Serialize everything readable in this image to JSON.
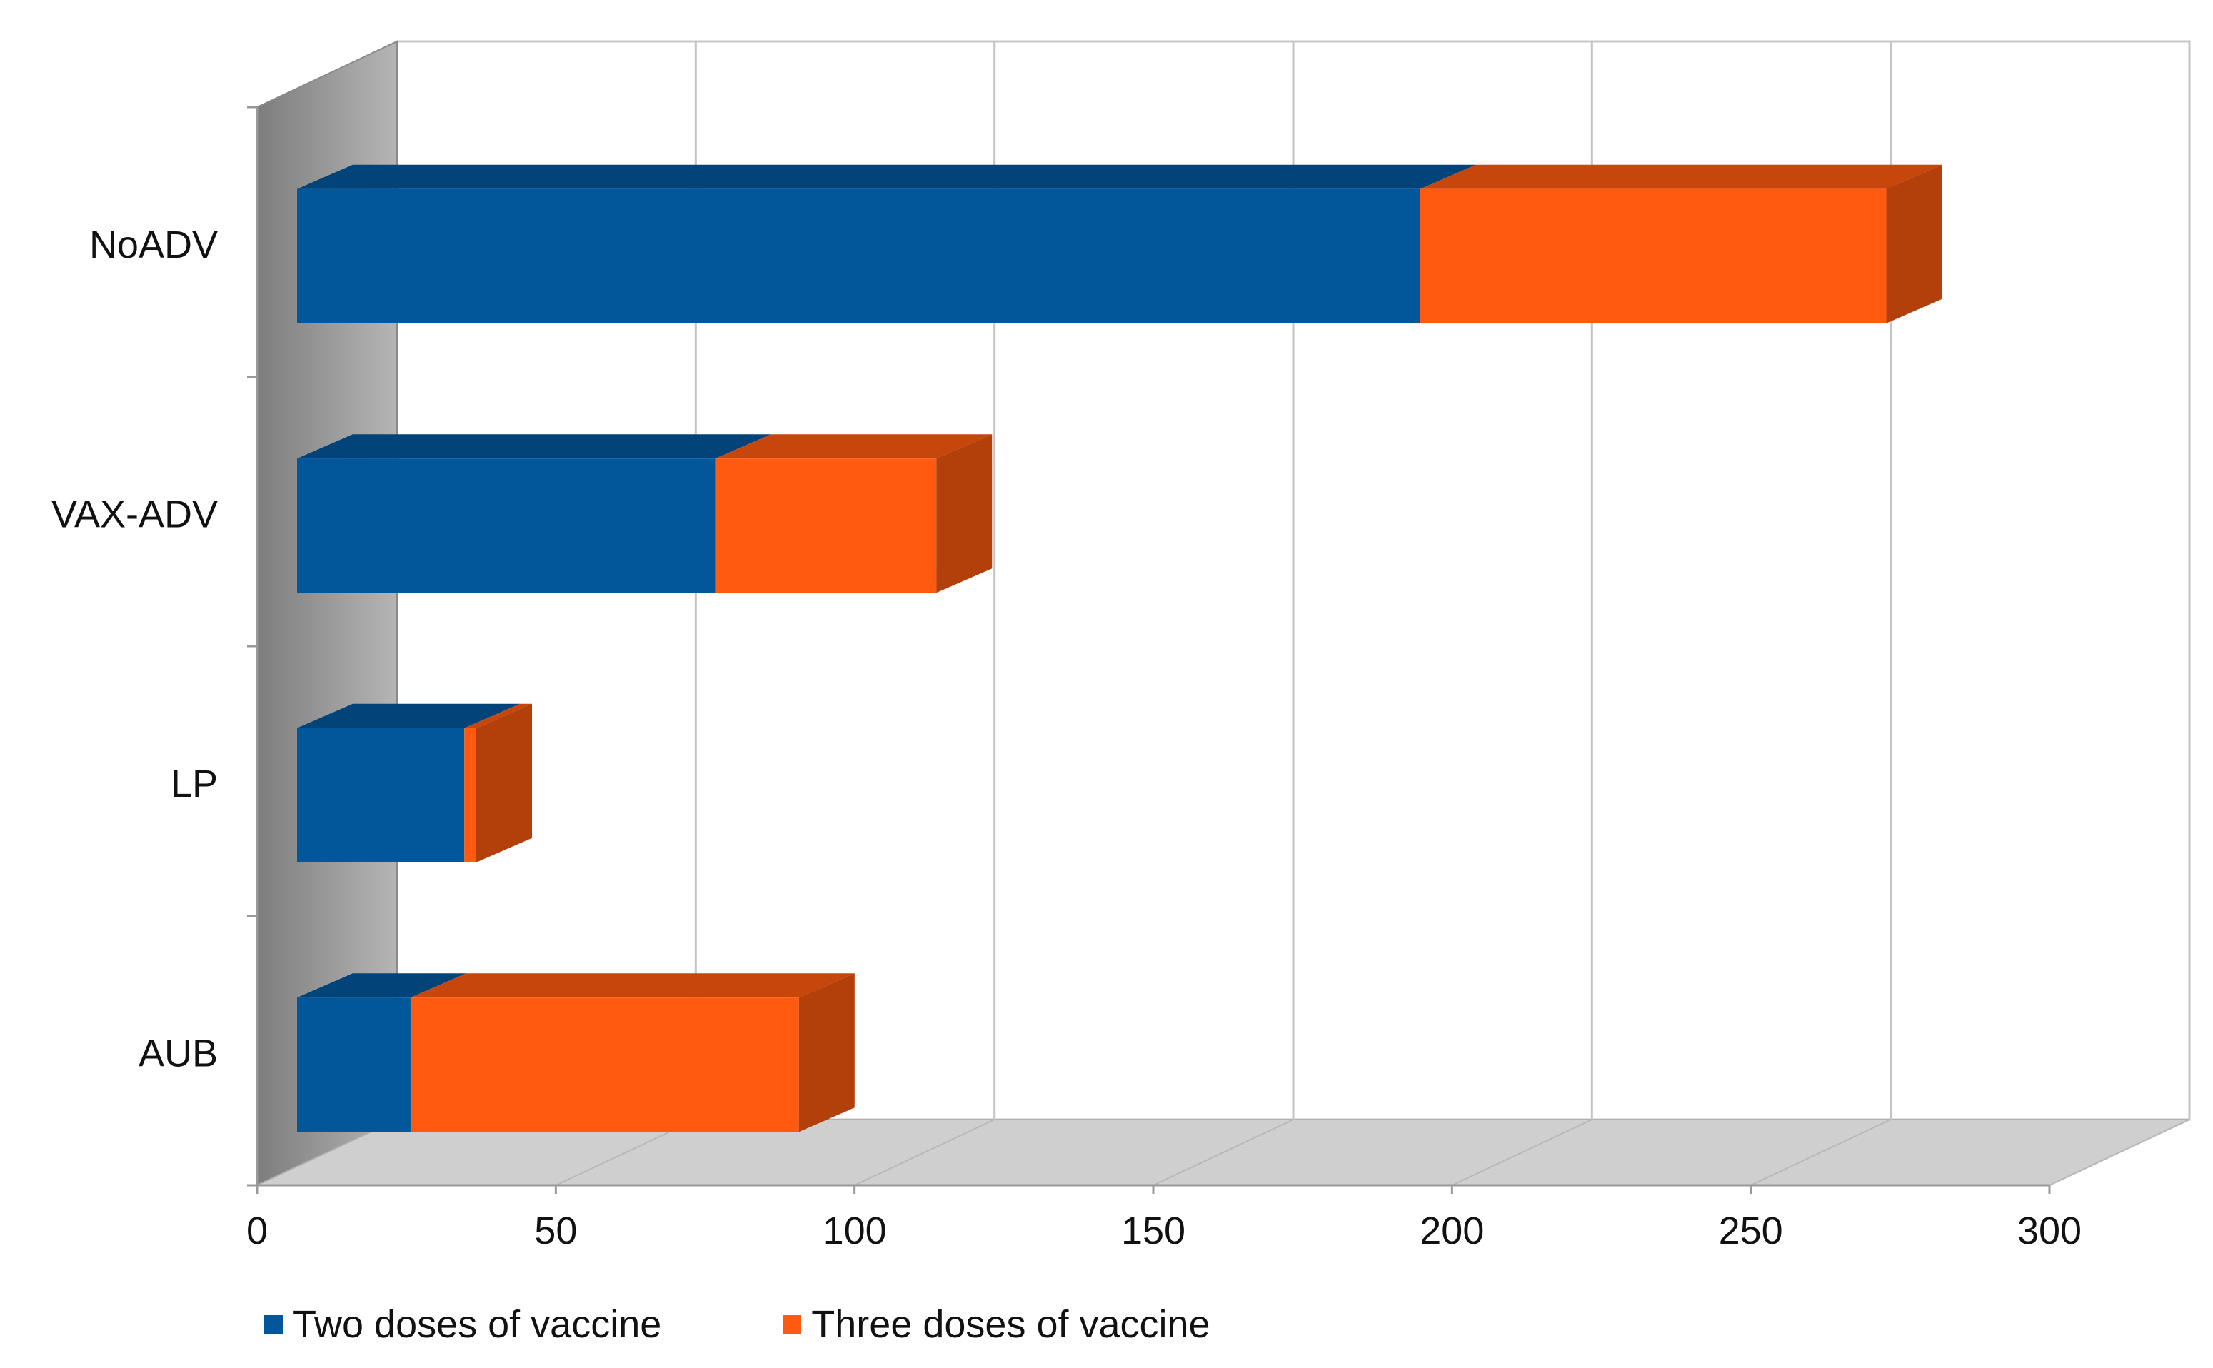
{
  "chart_data": {
    "type": "bar",
    "orientation": "horizontal",
    "stacked": true,
    "style": "3d",
    "categories": [
      "NoADV",
      "VAX-ADV",
      "LP",
      "AUB"
    ],
    "series": [
      {
        "name": "Two doses of vaccine",
        "values": [
          188,
          70,
          28,
          19
        ],
        "color": "#02579B"
      },
      {
        "name": "Three doses of vaccine",
        "values": [
          78,
          37,
          2,
          65
        ],
        "color": "#FF5A0F"
      }
    ],
    "xticks": [
      "0",
      "50",
      "100",
      "150",
      "200",
      "250",
      "300"
    ],
    "xlim": [
      0,
      300
    ],
    "title": "",
    "xlabel": "",
    "ylabel": "",
    "grid": true,
    "legend_position": "bottom"
  }
}
